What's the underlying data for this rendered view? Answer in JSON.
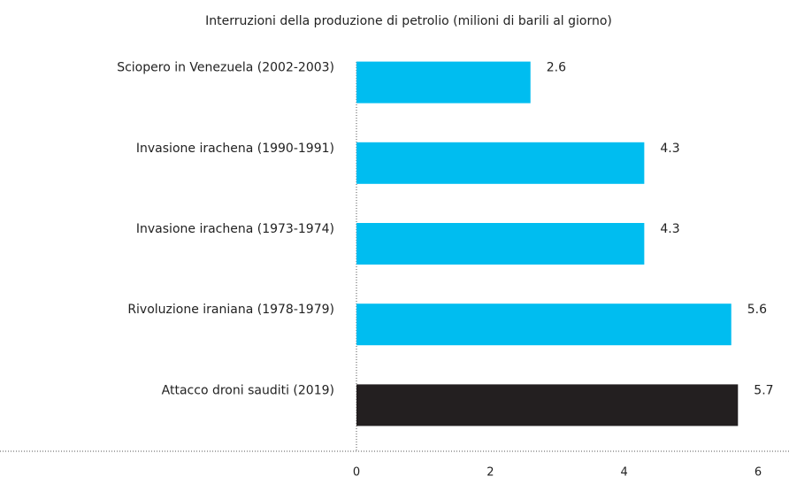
{
  "chart_data": {
    "type": "barh",
    "title": "Interruzioni della produzione di petrolio (milioni di barili al giorno)",
    "categories": [
      "Sciopero in Venezuela (2002-2003)",
      "Invasione irachena (1990-1991)",
      "Invasione irachena (1973-1974)",
      "Rivoluzione iraniana (1978-1979)",
      "Attacco droni sauditi (2019)"
    ],
    "values": [
      2.6,
      4.3,
      4.3,
      5.6,
      5.7
    ],
    "colors": [
      "#00bdf0",
      "#00bdf0",
      "#00bdf0",
      "#00bdf0",
      "#231f20"
    ],
    "xlim": [
      0,
      6
    ],
    "xticks": [
      0,
      2,
      4,
      6
    ],
    "grid": false
  }
}
